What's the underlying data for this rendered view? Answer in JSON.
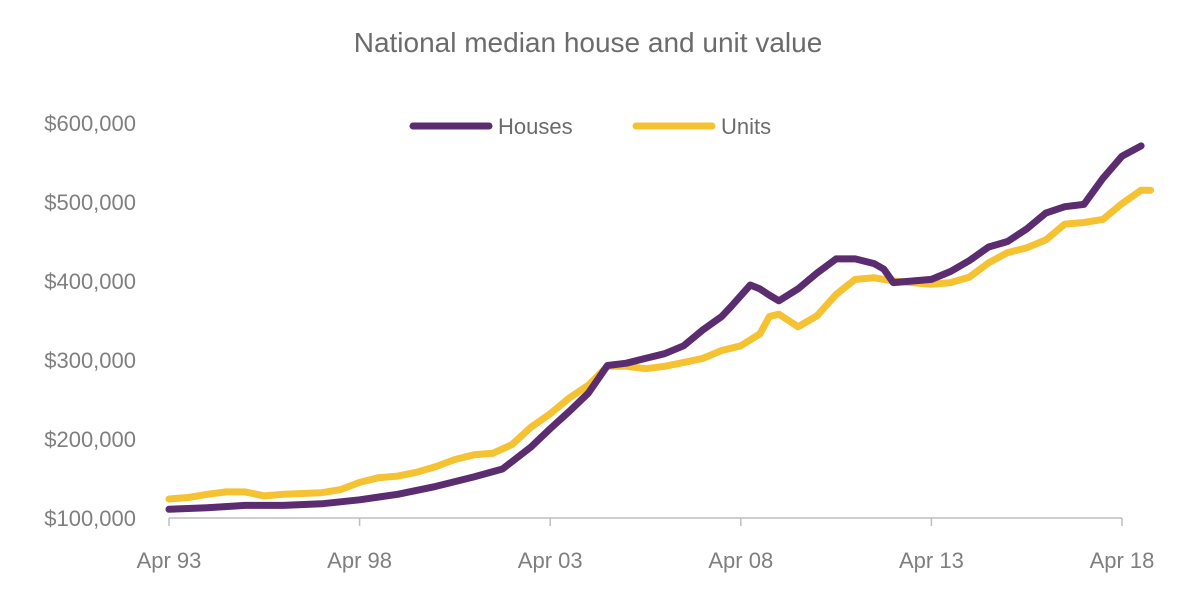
{
  "chart_data": {
    "type": "line",
    "title": "National median house and unit value",
    "xlabel": "",
    "ylabel": "",
    "x_ticks": [
      "Apr 93",
      "Apr 98",
      "Apr 03",
      "Apr 08",
      "Apr 13",
      "Apr 18"
    ],
    "x_range": [
      1993.25,
      2018.25
    ],
    "y_ticks": [
      "$100,000",
      "$200,000",
      "$300,000",
      "$400,000",
      "$500,000",
      "$600,000"
    ],
    "y_tick_values": [
      100000,
      200000,
      300000,
      400000,
      500000,
      600000
    ],
    "ylim": [
      100000,
      600000
    ],
    "grid": false,
    "legend_position": "top-center",
    "series": [
      {
        "name": "Houses",
        "color": "#5b2c6f",
        "points": [
          [
            1993.25,
            111000
          ],
          [
            1994.25,
            113000
          ],
          [
            1995.25,
            116000
          ],
          [
            1996.25,
            116000
          ],
          [
            1997.25,
            118000
          ],
          [
            1998.25,
            123000
          ],
          [
            1999.25,
            130000
          ],
          [
            2000.25,
            140000
          ],
          [
            2001.25,
            152000
          ],
          [
            2002.0,
            162000
          ],
          [
            2002.75,
            190000
          ],
          [
            2003.25,
            213000
          ],
          [
            2003.75,
            235000
          ],
          [
            2004.25,
            258000
          ],
          [
            2004.75,
            293000
          ],
          [
            2005.25,
            296000
          ],
          [
            2005.75,
            302000
          ],
          [
            2006.25,
            308000
          ],
          [
            2006.75,
            318000
          ],
          [
            2007.25,
            338000
          ],
          [
            2007.75,
            355000
          ],
          [
            2008.0,
            368000
          ],
          [
            2008.5,
            395000
          ],
          [
            2008.75,
            390000
          ],
          [
            2009.0,
            382000
          ],
          [
            2009.25,
            375000
          ],
          [
            2009.75,
            390000
          ],
          [
            2010.25,
            410000
          ],
          [
            2010.75,
            428000
          ],
          [
            2011.25,
            428000
          ],
          [
            2011.75,
            422000
          ],
          [
            2012.0,
            415000
          ],
          [
            2012.25,
            398000
          ],
          [
            2012.75,
            400000
          ],
          [
            2013.25,
            402000
          ],
          [
            2013.75,
            412000
          ],
          [
            2014.25,
            426000
          ],
          [
            2014.75,
            443000
          ],
          [
            2015.25,
            450000
          ],
          [
            2015.75,
            466000
          ],
          [
            2016.25,
            486000
          ],
          [
            2016.75,
            494000
          ],
          [
            2017.25,
            497000
          ],
          [
            2017.75,
            530000
          ],
          [
            2018.25,
            558000
          ],
          [
            2018.75,
            571000
          ]
        ]
      },
      {
        "name": "Units",
        "color": "#f5c232",
        "points": [
          [
            1993.25,
            124000
          ],
          [
            1993.75,
            126000
          ],
          [
            1994.25,
            130000
          ],
          [
            1994.75,
            133000
          ],
          [
            1995.25,
            133000
          ],
          [
            1995.75,
            128000
          ],
          [
            1996.25,
            130000
          ],
          [
            1997.25,
            132000
          ],
          [
            1997.75,
            136000
          ],
          [
            1998.25,
            145000
          ],
          [
            1998.75,
            151000
          ],
          [
            1999.25,
            153000
          ],
          [
            1999.75,
            158000
          ],
          [
            2000.25,
            165000
          ],
          [
            2000.75,
            174000
          ],
          [
            2001.25,
            180000
          ],
          [
            2001.75,
            182000
          ],
          [
            2002.25,
            193000
          ],
          [
            2002.75,
            215000
          ],
          [
            2003.25,
            232000
          ],
          [
            2003.75,
            252000
          ],
          [
            2004.25,
            268000
          ],
          [
            2004.75,
            292000
          ],
          [
            2005.25,
            292000
          ],
          [
            2005.75,
            289000
          ],
          [
            2006.25,
            292000
          ],
          [
            2006.75,
            297000
          ],
          [
            2007.25,
            302000
          ],
          [
            2007.75,
            312000
          ],
          [
            2008.25,
            318000
          ],
          [
            2008.75,
            333000
          ],
          [
            2009.0,
            355000
          ],
          [
            2009.25,
            358000
          ],
          [
            2009.5,
            350000
          ],
          [
            2009.75,
            342000
          ],
          [
            2010.25,
            356000
          ],
          [
            2010.75,
            383000
          ],
          [
            2011.25,
            402000
          ],
          [
            2011.75,
            404000
          ],
          [
            2012.25,
            400000
          ],
          [
            2012.75,
            398000
          ],
          [
            2013.25,
            396000
          ],
          [
            2013.75,
            398000
          ],
          [
            2014.25,
            405000
          ],
          [
            2014.75,
            423000
          ],
          [
            2015.25,
            436000
          ],
          [
            2015.75,
            442000
          ],
          [
            2016.25,
            452000
          ],
          [
            2016.75,
            472000
          ],
          [
            2017.25,
            474000
          ],
          [
            2017.75,
            478000
          ],
          [
            2018.25,
            498000
          ],
          [
            2018.75,
            515000
          ],
          [
            2019.0,
            515000
          ]
        ]
      }
    ]
  }
}
